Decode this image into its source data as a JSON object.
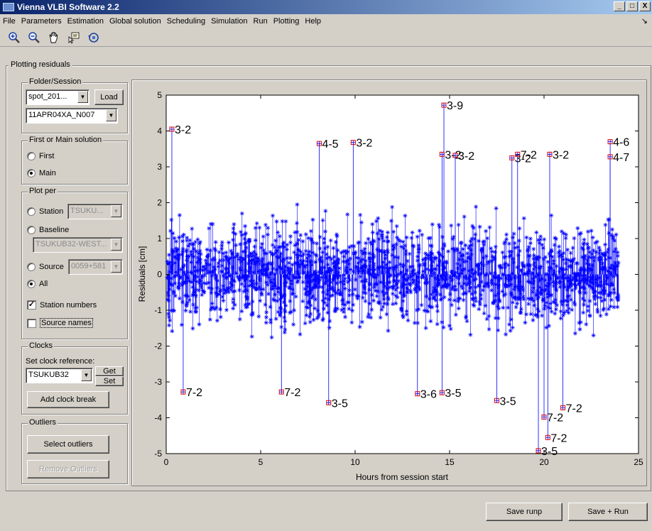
{
  "window": {
    "title": "Vienna VLBI Software 2.2",
    "controls": [
      "_",
      "□",
      "X"
    ]
  },
  "menu": {
    "items": [
      "File",
      "Parameters",
      "Estimation",
      "Global solution",
      "Scheduling",
      "Simulation",
      "Run",
      "Plotting",
      "Help"
    ]
  },
  "toolbar": {
    "tools": [
      "zoom-in-icon",
      "zoom-out-icon",
      "pan-hand-icon",
      "data-cursor-icon",
      "rotate-3d-icon"
    ]
  },
  "panel": {
    "title": "Plotting residuals",
    "folder_session": {
      "title": "Folder/Session",
      "folder_value": "spot_201...",
      "load_label": "Load",
      "session_value": "11APR04XA_N007"
    },
    "solution": {
      "title": "First or Main solution",
      "first_label": "First",
      "main_label": "Main",
      "selected": "Main"
    },
    "plot_per": {
      "title": "Plot per",
      "station_label": "Station",
      "station_value": "TSUKU...",
      "baseline_label": "Baseline",
      "baseline_value": "TSUKUB32-WEST...",
      "source_label": "Source",
      "source_value": "0059+581",
      "all_label": "All",
      "selected": "All",
      "station_numbers_label": "Station numbers",
      "station_numbers_checked": true,
      "source_names_label": "Source names",
      "source_names_checked": false
    },
    "clocks": {
      "title": "Clocks",
      "ref_label": "Set clock reference:",
      "ref_value": "TSUKUB32",
      "get_label": "Get",
      "set_label": "Set",
      "add_break_label": "Add clock break"
    },
    "outliers": {
      "title": "Outliers",
      "select_label": "Select outliers",
      "remove_label": "Remove Outliers"
    }
  },
  "footer": {
    "save_runp_label": "Save runp",
    "save_run_label": "Save + Run"
  },
  "chart_data": {
    "type": "scatter",
    "title": "",
    "xlabel": "Hours from session start",
    "ylabel": "Residuals [cm]",
    "xlim": [
      0,
      25
    ],
    "ylim": [
      -5,
      5
    ],
    "xticks": [
      0,
      5,
      10,
      15,
      20,
      25
    ],
    "yticks": [
      -5,
      -4,
      -3,
      -2,
      -1,
      0,
      1,
      2,
      3,
      4,
      5
    ],
    "color": "#0000ff",
    "marker": "asterisk",
    "stems": true,
    "n_points_approx": 2000,
    "outliers": [
      {
        "x": 0.3,
        "y": 4.05,
        "label": "3-2"
      },
      {
        "x": 8.1,
        "y": 3.65,
        "label": "4-5"
      },
      {
        "x": 9.9,
        "y": 3.68,
        "label": "3-2"
      },
      {
        "x": 14.7,
        "y": 4.72,
        "label": "3-9"
      },
      {
        "x": 14.6,
        "y": 3.35,
        "label": "3-2"
      },
      {
        "x": 15.3,
        "y": 3.32,
        "label": "3-2"
      },
      {
        "x": 18.3,
        "y": 3.25,
        "label": "3-2"
      },
      {
        "x": 18.6,
        "y": 3.35,
        "label": "7-2"
      },
      {
        "x": 20.3,
        "y": 3.35,
        "label": "3-2"
      },
      {
        "x": 23.5,
        "y": 3.7,
        "label": "4-6"
      },
      {
        "x": 23.5,
        "y": 3.28,
        "label": "4-7"
      },
      {
        "x": 0.9,
        "y": -3.28,
        "label": "7-2"
      },
      {
        "x": 6.1,
        "y": -3.28,
        "label": "7-2"
      },
      {
        "x": 8.6,
        "y": -3.58,
        "label": "3-5"
      },
      {
        "x": 13.3,
        "y": -3.33,
        "label": "3-6"
      },
      {
        "x": 14.6,
        "y": -3.3,
        "label": "3-5"
      },
      {
        "x": 17.5,
        "y": -3.52,
        "label": "3-5"
      },
      {
        "x": 20.0,
        "y": -3.98,
        "label": "7-2"
      },
      {
        "x": 21.0,
        "y": -3.72,
        "label": "7-2"
      },
      {
        "x": 20.2,
        "y": -4.55,
        "label": "7-2"
      },
      {
        "x": 19.7,
        "y": -4.92,
        "label": "3-5"
      }
    ]
  }
}
